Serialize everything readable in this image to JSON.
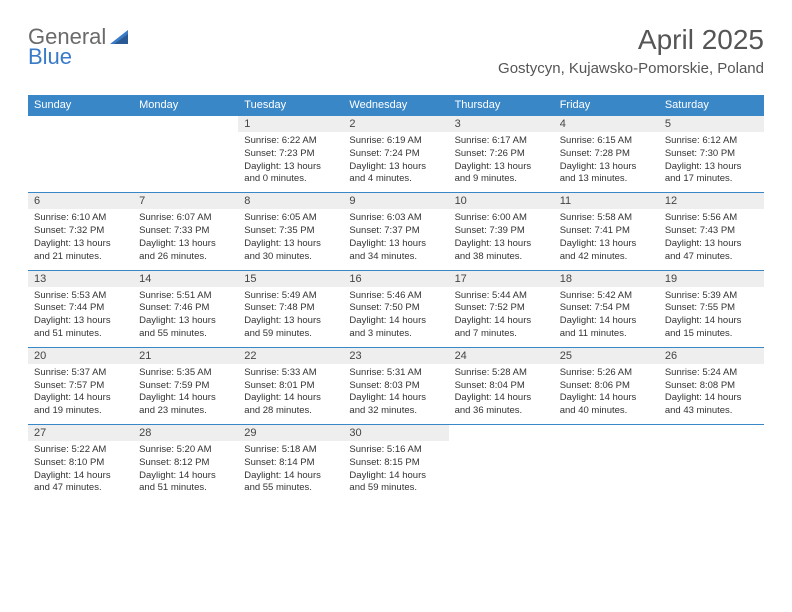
{
  "logo": {
    "part1": "General",
    "part2": "Blue"
  },
  "title": "April 2025",
  "location": "Gostycyn, Kujawsko-Pomorskie, Poland",
  "colors": {
    "header_bg": "#3a87c8",
    "header_text": "#ffffff",
    "daynum_bg": "#eeeeee",
    "border": "#3a87c8",
    "logo_gray": "#6a6a6a",
    "logo_blue": "#3a7bc8"
  },
  "dayNames": [
    "Sunday",
    "Monday",
    "Tuesday",
    "Wednesday",
    "Thursday",
    "Friday",
    "Saturday"
  ],
  "weeks": [
    [
      null,
      null,
      {
        "n": "1",
        "sr": "6:22 AM",
        "ss": "7:23 PM",
        "dl": "13 hours and 0 minutes."
      },
      {
        "n": "2",
        "sr": "6:19 AM",
        "ss": "7:24 PM",
        "dl": "13 hours and 4 minutes."
      },
      {
        "n": "3",
        "sr": "6:17 AM",
        "ss": "7:26 PM",
        "dl": "13 hours and 9 minutes."
      },
      {
        "n": "4",
        "sr": "6:15 AM",
        "ss": "7:28 PM",
        "dl": "13 hours and 13 minutes."
      },
      {
        "n": "5",
        "sr": "6:12 AM",
        "ss": "7:30 PM",
        "dl": "13 hours and 17 minutes."
      }
    ],
    [
      {
        "n": "6",
        "sr": "6:10 AM",
        "ss": "7:32 PM",
        "dl": "13 hours and 21 minutes."
      },
      {
        "n": "7",
        "sr": "6:07 AM",
        "ss": "7:33 PM",
        "dl": "13 hours and 26 minutes."
      },
      {
        "n": "8",
        "sr": "6:05 AM",
        "ss": "7:35 PM",
        "dl": "13 hours and 30 minutes."
      },
      {
        "n": "9",
        "sr": "6:03 AM",
        "ss": "7:37 PM",
        "dl": "13 hours and 34 minutes."
      },
      {
        "n": "10",
        "sr": "6:00 AM",
        "ss": "7:39 PM",
        "dl": "13 hours and 38 minutes."
      },
      {
        "n": "11",
        "sr": "5:58 AM",
        "ss": "7:41 PM",
        "dl": "13 hours and 42 minutes."
      },
      {
        "n": "12",
        "sr": "5:56 AM",
        "ss": "7:43 PM",
        "dl": "13 hours and 47 minutes."
      }
    ],
    [
      {
        "n": "13",
        "sr": "5:53 AM",
        "ss": "7:44 PM",
        "dl": "13 hours and 51 minutes."
      },
      {
        "n": "14",
        "sr": "5:51 AM",
        "ss": "7:46 PM",
        "dl": "13 hours and 55 minutes."
      },
      {
        "n": "15",
        "sr": "5:49 AM",
        "ss": "7:48 PM",
        "dl": "13 hours and 59 minutes."
      },
      {
        "n": "16",
        "sr": "5:46 AM",
        "ss": "7:50 PM",
        "dl": "14 hours and 3 minutes."
      },
      {
        "n": "17",
        "sr": "5:44 AM",
        "ss": "7:52 PM",
        "dl": "14 hours and 7 minutes."
      },
      {
        "n": "18",
        "sr": "5:42 AM",
        "ss": "7:54 PM",
        "dl": "14 hours and 11 minutes."
      },
      {
        "n": "19",
        "sr": "5:39 AM",
        "ss": "7:55 PM",
        "dl": "14 hours and 15 minutes."
      }
    ],
    [
      {
        "n": "20",
        "sr": "5:37 AM",
        "ss": "7:57 PM",
        "dl": "14 hours and 19 minutes."
      },
      {
        "n": "21",
        "sr": "5:35 AM",
        "ss": "7:59 PM",
        "dl": "14 hours and 23 minutes."
      },
      {
        "n": "22",
        "sr": "5:33 AM",
        "ss": "8:01 PM",
        "dl": "14 hours and 28 minutes."
      },
      {
        "n": "23",
        "sr": "5:31 AM",
        "ss": "8:03 PM",
        "dl": "14 hours and 32 minutes."
      },
      {
        "n": "24",
        "sr": "5:28 AM",
        "ss": "8:04 PM",
        "dl": "14 hours and 36 minutes."
      },
      {
        "n": "25",
        "sr": "5:26 AM",
        "ss": "8:06 PM",
        "dl": "14 hours and 40 minutes."
      },
      {
        "n": "26",
        "sr": "5:24 AM",
        "ss": "8:08 PM",
        "dl": "14 hours and 43 minutes."
      }
    ],
    [
      {
        "n": "27",
        "sr": "5:22 AM",
        "ss": "8:10 PM",
        "dl": "14 hours and 47 minutes."
      },
      {
        "n": "28",
        "sr": "5:20 AM",
        "ss": "8:12 PM",
        "dl": "14 hours and 51 minutes."
      },
      {
        "n": "29",
        "sr": "5:18 AM",
        "ss": "8:14 PM",
        "dl": "14 hours and 55 minutes."
      },
      {
        "n": "30",
        "sr": "5:16 AM",
        "ss": "8:15 PM",
        "dl": "14 hours and 59 minutes."
      },
      null,
      null,
      null
    ]
  ],
  "labels": {
    "sunrise": "Sunrise:",
    "sunset": "Sunset:",
    "daylight": "Daylight:"
  }
}
